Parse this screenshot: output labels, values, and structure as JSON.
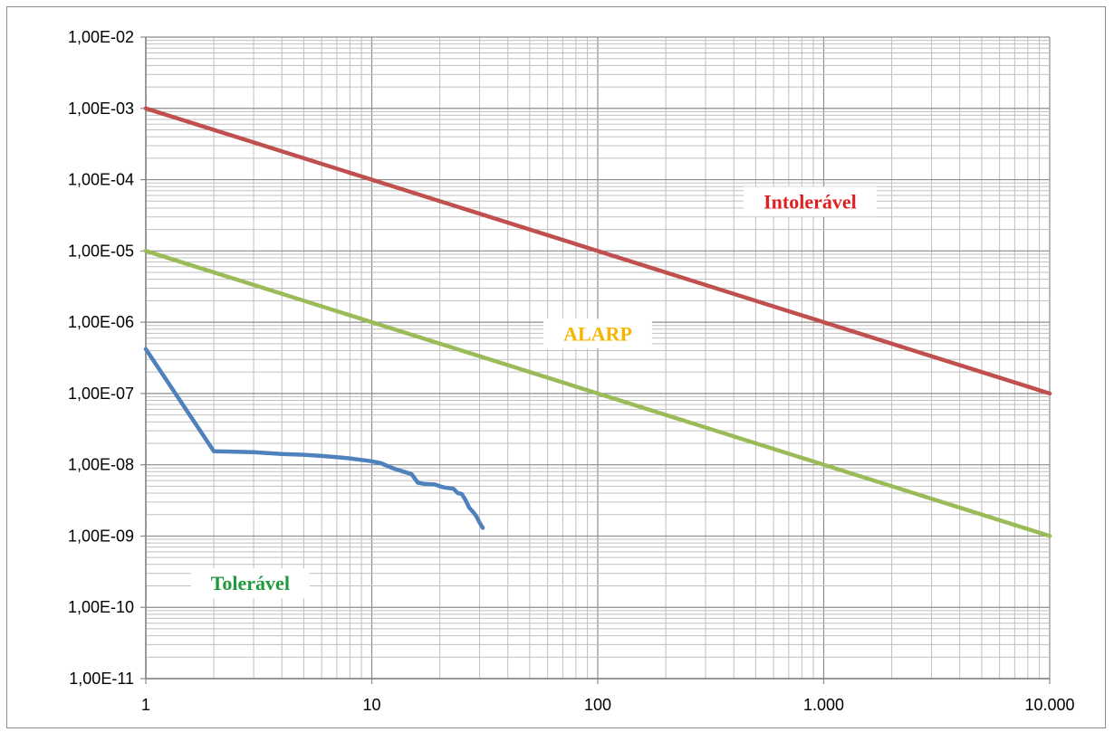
{
  "chart_data": {
    "type": "line",
    "title": "",
    "xlabel": "",
    "ylabel": "",
    "x_scale": "log",
    "y_scale": "log",
    "xlim": [
      1,
      10000
    ],
    "ylim": [
      1e-11,
      0.01
    ],
    "grid": true,
    "x_tick_labels": [
      "1",
      "10",
      "100",
      "1.000",
      "10.000"
    ],
    "y_tick_labels": [
      "1,00E-02",
      "1,00E-03",
      "1,00E-04",
      "1,00E-05",
      "1,00E-06",
      "1,00E-07",
      "1,00E-08",
      "1,00E-09",
      "1,00E-10",
      "1,00E-11"
    ],
    "series": [
      {
        "color": "#c0504d",
        "x": [
          1,
          10000
        ],
        "y": [
          0.001,
          1e-07
        ]
      },
      {
        "color": "#9bbb59",
        "x": [
          1,
          10000
        ],
        "y": [
          1e-05,
          1e-09
        ]
      },
      {
        "color": "#4f81bd",
        "x": [
          1,
          2,
          3,
          4,
          5,
          6,
          7,
          8,
          9,
          10,
          11,
          12,
          13,
          14,
          15,
          16,
          17,
          18,
          19,
          20,
          21,
          22,
          23,
          24,
          25,
          26,
          27,
          28,
          29,
          30,
          31
        ],
        "y": [
          4.2e-07,
          1.55e-08,
          1.5e-08,
          1.42e-08,
          1.38e-08,
          1.33e-08,
          1.28e-08,
          1.23e-08,
          1.17e-08,
          1.12e-08,
          1.05e-08,
          9.3e-09,
          8.5e-09,
          7.9e-09,
          7.4e-09,
          5.6e-09,
          5.4e-09,
          5.35e-09,
          5.3e-09,
          5e-09,
          4.8e-09,
          4.7e-09,
          4.6e-09,
          4e-09,
          3.9e-09,
          3.2e-09,
          2.5e-09,
          2.2e-09,
          1.9e-09,
          1.55e-09,
          1.3e-09
        ]
      }
    ],
    "annotations": [
      {
        "text": "Intolerável",
        "color": "#e02020",
        "x": 870,
        "y": 5e-05
      },
      {
        "text": "ALARP",
        "color": "#f5b400",
        "x": 100,
        "y": 7e-07
      },
      {
        "text": "Tolerável",
        "color": "#1f9a3c",
        "x": 2.9,
        "y": 2.2e-10
      }
    ]
  }
}
